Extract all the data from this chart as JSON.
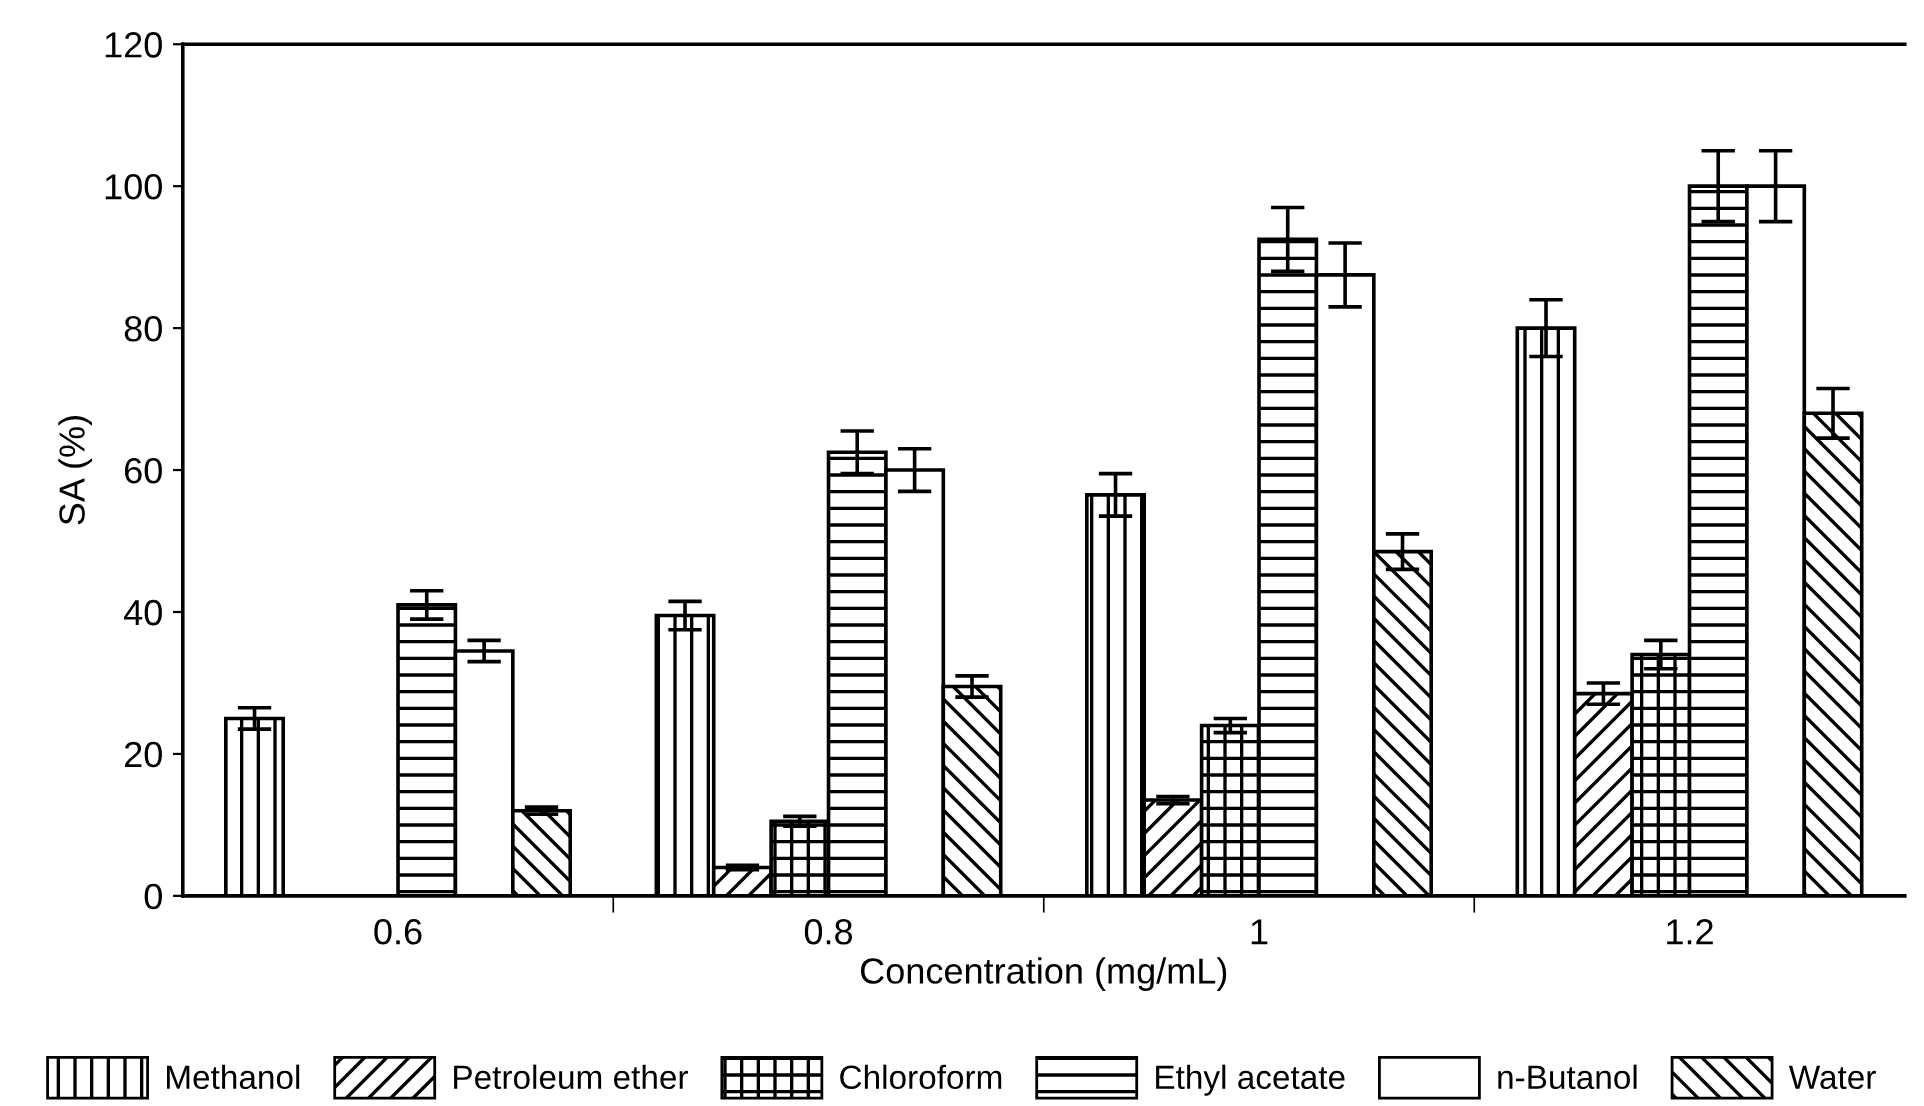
{
  "chart_data": {
    "type": "bar",
    "xlabel": "Concentration (mg/mL)",
    "ylabel": "SA (%)",
    "categories": [
      "0.6",
      "0.8",
      "1",
      "1.2"
    ],
    "series": [
      {
        "name": "Methanol",
        "color": "#000000",
        "values": [
          25,
          39.5,
          56.5,
          80
        ],
        "errors": [
          1.5,
          2,
          3,
          4
        ]
      },
      {
        "name": "Petroleum ether",
        "color": "#000000",
        "values": [
          null,
          4,
          13.5,
          28.5
        ],
        "errors": [
          null,
          0.3,
          0.5,
          1.5
        ]
      },
      {
        "name": "Chloroform",
        "color": "#000000",
        "values": [
          null,
          10.5,
          24,
          34
        ],
        "errors": [
          null,
          0.7,
          1,
          2
        ]
      },
      {
        "name": "Ethyl acetate",
        "color": "#000000",
        "values": [
          41,
          62.5,
          92.5,
          100
        ],
        "errors": [
          2,
          3,
          4.5,
          5
        ]
      },
      {
        "name": "n-Butanol",
        "color": "#000000",
        "values": [
          34.5,
          60,
          87.5,
          100
        ],
        "errors": [
          1.5,
          3,
          4.5,
          5
        ]
      },
      {
        "name": "Water",
        "color": "#000000",
        "values": [
          12,
          29.5,
          48.5,
          68
        ],
        "errors": [
          0.5,
          1.5,
          2.5,
          3.5
        ]
      }
    ],
    "ylim": [
      0,
      120
    ],
    "yticks": [
      0,
      20,
      40,
      60,
      80,
      100,
      120
    ],
    "grid": false,
    "legend": "bottom"
  }
}
